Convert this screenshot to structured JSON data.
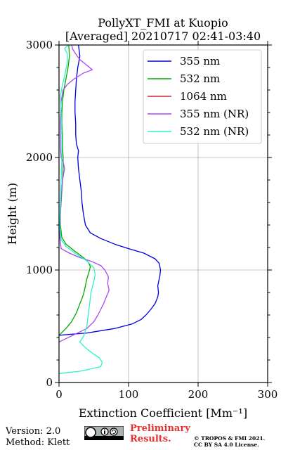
{
  "chart_data": {
    "type": "line",
    "title": "PollyXT_FMI at Kuopio",
    "subtitle": "[Averaged] 20210717 02:41-03:40",
    "xlabel": "Extinction Coefficient [Mm⁻¹]",
    "ylabel": "Height (m)",
    "xlim": [
      0,
      300
    ],
    "ylim": [
      0,
      3000
    ],
    "xticks": [
      "0",
      "100",
      "200",
      "300"
    ],
    "yticks": [
      "0",
      "1000",
      "2000",
      "3000"
    ],
    "grid": true,
    "legend_position": "top-right",
    "series": [
      {
        "name": "355 nm",
        "color": "#0000e0",
        "points": [
          [
            0,
            420
          ],
          [
            40,
            440
          ],
          [
            80,
            480
          ],
          [
            105,
            520
          ],
          [
            118,
            560
          ],
          [
            125,
            600
          ],
          [
            132,
            650
          ],
          [
            138,
            700
          ],
          [
            142,
            760
          ],
          [
            143,
            800
          ],
          [
            142,
            860
          ],
          [
            145,
            950
          ],
          [
            146,
            1000
          ],
          [
            144,
            1060
          ],
          [
            138,
            1100
          ],
          [
            122,
            1150
          ],
          [
            100,
            1190
          ],
          [
            80,
            1230
          ],
          [
            60,
            1280
          ],
          [
            45,
            1330
          ],
          [
            38,
            1400
          ],
          [
            35,
            1500
          ],
          [
            33,
            1600
          ],
          [
            32,
            1700
          ],
          [
            30,
            1800
          ],
          [
            28,
            1900
          ],
          [
            27,
            2000
          ],
          [
            28,
            2060
          ],
          [
            25,
            2120
          ],
          [
            24,
            2200
          ],
          [
            24,
            2300
          ],
          [
            23,
            2400
          ],
          [
            23,
            2500
          ],
          [
            24,
            2600
          ],
          [
            25,
            2700
          ],
          [
            27,
            2800
          ],
          [
            30,
            2900
          ],
          [
            28,
            3000
          ]
        ]
      },
      {
        "name": "532 nm",
        "color": "#00aa00",
        "points": [
          [
            0,
            420
          ],
          [
            10,
            480
          ],
          [
            18,
            540
          ],
          [
            25,
            620
          ],
          [
            30,
            700
          ],
          [
            35,
            780
          ],
          [
            38,
            860
          ],
          [
            40,
            920
          ],
          [
            43,
            980
          ],
          [
            45,
            1030
          ],
          [
            42,
            1070
          ],
          [
            35,
            1110
          ],
          [
            22,
            1170
          ],
          [
            10,
            1230
          ],
          [
            4,
            1290
          ],
          [
            2,
            1400
          ],
          [
            2,
            1500
          ],
          [
            3,
            1600
          ],
          [
            4,
            1700
          ],
          [
            5,
            1800
          ],
          [
            6,
            1900
          ],
          [
            6,
            2000
          ],
          [
            5,
            2100
          ],
          [
            5,
            2200
          ],
          [
            4,
            2300
          ],
          [
            4,
            2400
          ],
          [
            5,
            2500
          ],
          [
            7,
            2600
          ],
          [
            10,
            2700
          ],
          [
            13,
            2800
          ],
          [
            15,
            2900
          ],
          [
            14,
            3000
          ]
        ]
      },
      {
        "name": "1064 nm",
        "color": "#d62728",
        "points": []
      },
      {
        "name": "355 nm (NR)",
        "color": "#a64af4",
        "points": [
          [
            0,
            360
          ],
          [
            20,
            420
          ],
          [
            40,
            480
          ],
          [
            50,
            540
          ],
          [
            56,
            600
          ],
          [
            60,
            650
          ],
          [
            64,
            700
          ],
          [
            68,
            760
          ],
          [
            72,
            820
          ],
          [
            70,
            880
          ],
          [
            71,
            940
          ],
          [
            66,
            1000
          ],
          [
            60,
            1040
          ],
          [
            45,
            1080
          ],
          [
            30,
            1110
          ],
          [
            15,
            1150
          ],
          [
            3,
            1190
          ],
          [
            1,
            1300
          ],
          [
            2,
            1500
          ],
          [
            3,
            1650
          ],
          [
            5,
            1800
          ],
          [
            8,
            1900
          ],
          [
            6,
            1960
          ],
          [
            3,
            2000
          ],
          [
            2,
            2100
          ],
          [
            2,
            2300
          ],
          [
            3,
            2500
          ],
          [
            6,
            2600
          ],
          [
            12,
            2650
          ],
          [
            22,
            2700
          ],
          [
            35,
            2750
          ],
          [
            48,
            2780
          ],
          [
            40,
            2820
          ],
          [
            30,
            2870
          ],
          [
            24,
            2920
          ],
          [
            20,
            2960
          ],
          [
            18,
            3000
          ]
        ]
      },
      {
        "name": "532 nm (NR)",
        "color": "#2ef2c8",
        "points": [
          [
            0,
            80
          ],
          [
            30,
            100
          ],
          [
            60,
            140
          ],
          [
            62,
            180
          ],
          [
            58,
            220
          ],
          [
            48,
            260
          ],
          [
            38,
            310
          ],
          [
            30,
            360
          ],
          [
            36,
            420
          ],
          [
            40,
            500
          ],
          [
            42,
            600
          ],
          [
            44,
            700
          ],
          [
            46,
            800
          ],
          [
            50,
            900
          ],
          [
            52,
            960
          ],
          [
            50,
            1020
          ],
          [
            40,
            1080
          ],
          [
            25,
            1140
          ],
          [
            10,
            1210
          ],
          [
            3,
            1270
          ],
          [
            1,
            1400
          ],
          [
            2,
            1600
          ],
          [
            3,
            1800
          ],
          [
            4,
            2000
          ],
          [
            4,
            2200
          ],
          [
            3,
            2400
          ],
          [
            2,
            2550
          ],
          [
            5,
            2650
          ],
          [
            9,
            2750
          ],
          [
            12,
            2850
          ],
          [
            12,
            2920
          ],
          [
            8,
            2970
          ],
          [
            14,
            3000
          ]
        ]
      }
    ]
  },
  "footer": {
    "version": "Version: 2.0",
    "method": "Method: Klett",
    "preliminary_line1": "Preliminary",
    "preliminary_line2": "Results.",
    "copyright_line1": "© TROPOS & FMI 2021.",
    "copyright_line2": "CC BY SA 4.0 License."
  }
}
